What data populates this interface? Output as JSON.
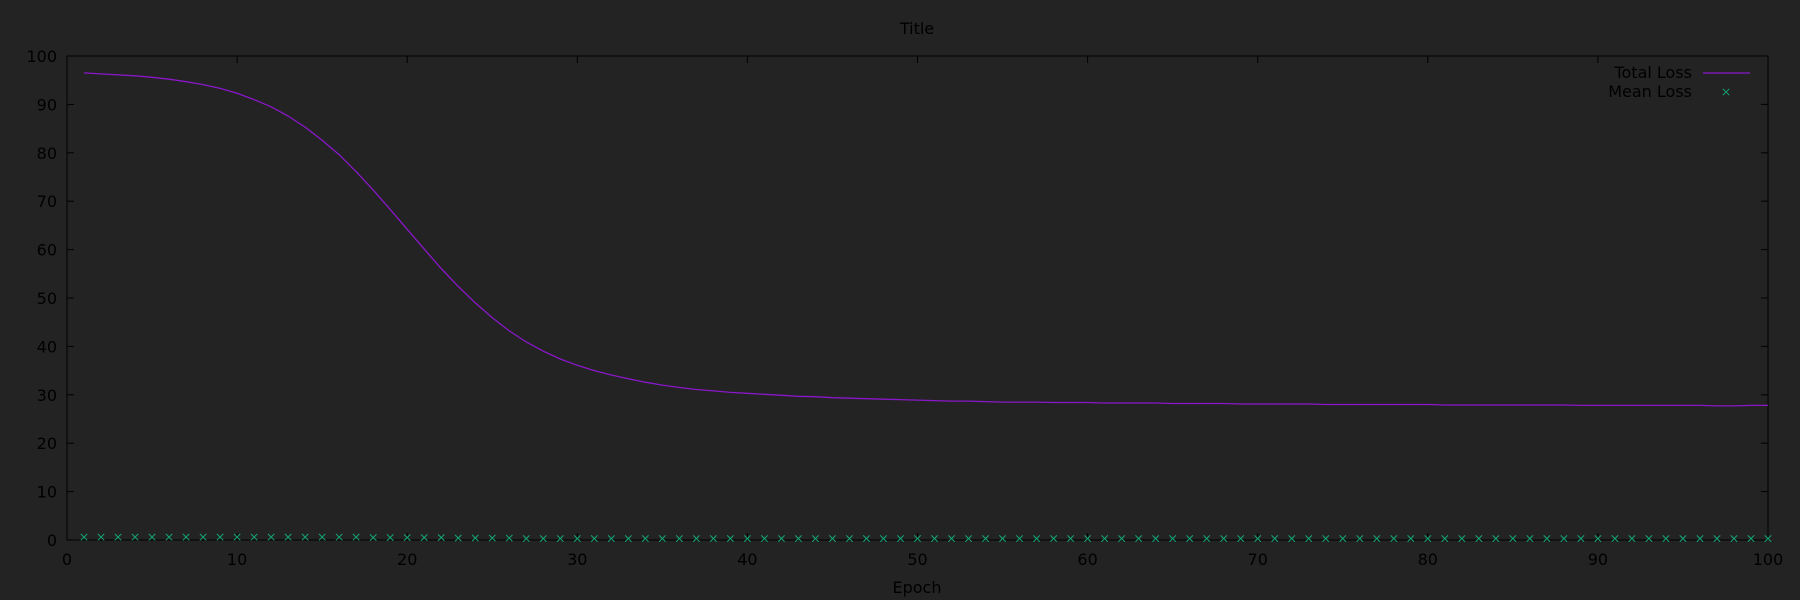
{
  "chart_data": {
    "type": "line",
    "title": "Title",
    "xlabel": "Epoch",
    "ylabel": "",
    "xlim": [
      0,
      100
    ],
    "ylim": [
      0,
      100
    ],
    "xticks": [
      0,
      10,
      20,
      30,
      40,
      50,
      60,
      70,
      80,
      90,
      100
    ],
    "yticks": [
      0,
      10,
      20,
      30,
      40,
      50,
      60,
      70,
      80,
      90,
      100
    ],
    "grid": false,
    "legend_position": "top-right",
    "colors": {
      "background": "#232323",
      "axes": "#000000",
      "total_loss": "#8a17c9",
      "mean_loss": "#13a678"
    },
    "series": [
      {
        "name": "Total Loss",
        "style": "line",
        "x": [
          1,
          2,
          3,
          4,
          5,
          6,
          7,
          8,
          9,
          10,
          11,
          12,
          13,
          14,
          15,
          16,
          17,
          18,
          19,
          20,
          21,
          22,
          23,
          24,
          25,
          26,
          27,
          28,
          29,
          30,
          31,
          32,
          33,
          34,
          35,
          36,
          37,
          38,
          39,
          40,
          41,
          42,
          43,
          44,
          45,
          46,
          47,
          48,
          49,
          50,
          51,
          52,
          53,
          54,
          55,
          56,
          57,
          58,
          59,
          60,
          61,
          62,
          63,
          64,
          65,
          66,
          67,
          68,
          69,
          70,
          71,
          72,
          73,
          74,
          75,
          76,
          77,
          78,
          79,
          80,
          81,
          82,
          83,
          84,
          85,
          86,
          87,
          88,
          89,
          90,
          91,
          92,
          93,
          94,
          95,
          96,
          97,
          98,
          99,
          100
        ],
        "values": [
          96.5,
          96.3,
          96.1,
          95.9,
          95.6,
          95.2,
          94.7,
          94.1,
          93.3,
          92.3,
          91.0,
          89.5,
          87.6,
          85.3,
          82.6,
          79.6,
          76.1,
          72.3,
          68.3,
          64.2,
          60.1,
          56.1,
          52.4,
          49.0,
          45.9,
          43.2,
          40.9,
          39.0,
          37.4,
          36.1,
          35.0,
          34.1,
          33.3,
          32.6,
          32.0,
          31.5,
          31.1,
          30.8,
          30.5,
          30.3,
          30.1,
          29.9,
          29.7,
          29.6,
          29.4,
          29.3,
          29.2,
          29.1,
          29.0,
          28.9,
          28.8,
          28.7,
          28.7,
          28.6,
          28.5,
          28.5,
          28.5,
          28.4,
          28.4,
          28.4,
          28.3,
          28.3,
          28.3,
          28.3,
          28.2,
          28.2,
          28.2,
          28.2,
          28.1,
          28.1,
          28.1,
          28.1,
          28.1,
          28.0,
          28.0,
          28.0,
          28.0,
          28.0,
          28.0,
          28.0,
          27.9,
          27.9,
          27.9,
          27.9,
          27.9,
          27.9,
          27.9,
          27.9,
          27.8,
          27.8,
          27.8,
          27.8,
          27.8,
          27.8,
          27.8,
          27.8,
          27.7,
          27.7,
          27.8,
          27.8
        ]
      },
      {
        "name": "Mean Loss",
        "style": "scatter",
        "marker": "x",
        "x": [
          1,
          2,
          3,
          4,
          5,
          6,
          7,
          8,
          9,
          10,
          11,
          12,
          13,
          14,
          15,
          16,
          17,
          18,
          19,
          20,
          21,
          22,
          23,
          24,
          25,
          26,
          27,
          28,
          29,
          30,
          31,
          32,
          33,
          34,
          35,
          36,
          37,
          38,
          39,
          40,
          41,
          42,
          43,
          44,
          45,
          46,
          47,
          48,
          49,
          50,
          51,
          52,
          53,
          54,
          55,
          56,
          57,
          58,
          59,
          60,
          61,
          62,
          63,
          64,
          65,
          66,
          67,
          68,
          69,
          70,
          71,
          72,
          73,
          74,
          75,
          76,
          77,
          78,
          79,
          80,
          81,
          82,
          83,
          84,
          85,
          86,
          87,
          88,
          89,
          90,
          91,
          92,
          93,
          94,
          95,
          96,
          97,
          98,
          99,
          100
        ],
        "values": [
          0.6,
          0.6,
          0.6,
          0.6,
          0.6,
          0.6,
          0.6,
          0.6,
          0.6,
          0.6,
          0.6,
          0.6,
          0.6,
          0.6,
          0.6,
          0.6,
          0.6,
          0.5,
          0.5,
          0.5,
          0.5,
          0.5,
          0.4,
          0.4,
          0.4,
          0.4,
          0.3,
          0.3,
          0.3,
          0.3,
          0.3,
          0.3,
          0.3,
          0.3,
          0.3,
          0.3,
          0.3,
          0.3,
          0.3,
          0.3,
          0.3,
          0.3,
          0.3,
          0.3,
          0.3,
          0.3,
          0.3,
          0.3,
          0.3,
          0.3,
          0.3,
          0.3,
          0.3,
          0.3,
          0.3,
          0.3,
          0.3,
          0.3,
          0.3,
          0.3,
          0.3,
          0.3,
          0.3,
          0.3,
          0.3,
          0.3,
          0.3,
          0.3,
          0.3,
          0.3,
          0.3,
          0.3,
          0.3,
          0.3,
          0.3,
          0.3,
          0.3,
          0.3,
          0.3,
          0.3,
          0.3,
          0.3,
          0.3,
          0.3,
          0.3,
          0.3,
          0.3,
          0.3,
          0.3,
          0.3,
          0.3,
          0.3,
          0.3,
          0.3,
          0.3,
          0.3,
          0.3,
          0.3,
          0.3,
          0.3
        ]
      }
    ]
  }
}
